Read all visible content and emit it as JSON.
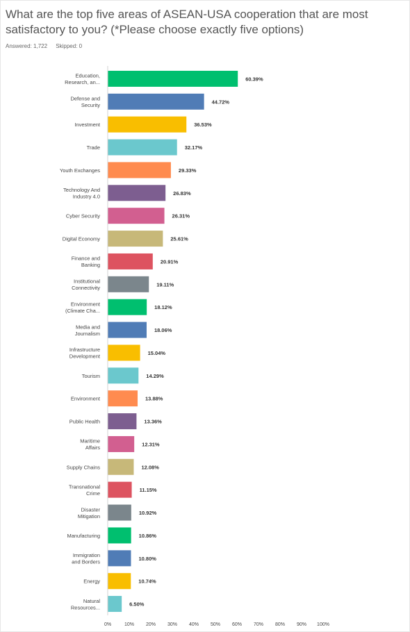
{
  "question": {
    "title": "What are the top five areas of ASEAN-USA cooperation that are most satisfactory to you? (*Please choose exactly five options)",
    "answered_label": "Answered: 1,722",
    "skipped_label": "Skipped: 0"
  },
  "chart_data": {
    "type": "bar",
    "orientation": "horizontal",
    "categories": [
      [
        "Education,",
        "Research, an..."
      ],
      [
        "Defense and",
        "Security"
      ],
      [
        "Investment"
      ],
      [
        "Trade"
      ],
      [
        "Youth Exchanges"
      ],
      [
        "Technology And",
        "Industry 4.0"
      ],
      [
        "Cyber Security"
      ],
      [
        "Digital Economy"
      ],
      [
        "Finance and",
        "Banking"
      ],
      [
        "Institutional",
        "Connectivity"
      ],
      [
        "Environment",
        "(Climate Cha..."
      ],
      [
        "Media and",
        "Journalism"
      ],
      [
        "Infrastructure",
        "Development"
      ],
      [
        "Tourism"
      ],
      [
        "Environment"
      ],
      [
        "Public Health"
      ],
      [
        "Maritime",
        "Affairs"
      ],
      [
        "Supply Chains"
      ],
      [
        "Transnational",
        "Crime"
      ],
      [
        "Disaster",
        "Mitigation"
      ],
      [
        "Manufacturing"
      ],
      [
        "Immigration",
        "and Borders"
      ],
      [
        "Energy"
      ],
      [
        "Natural",
        "Resources..."
      ]
    ],
    "values": [
      60.39,
      44.72,
      36.53,
      32.17,
      29.33,
      26.83,
      26.31,
      25.61,
      20.91,
      19.11,
      18.12,
      18.06,
      15.04,
      14.29,
      13.88,
      13.36,
      12.31,
      12.08,
      11.15,
      10.92,
      10.86,
      10.8,
      10.74,
      6.5
    ],
    "value_labels": [
      "60.39%",
      "44.72%",
      "36.53%",
      "32.17%",
      "29.33%",
      "26.83%",
      "26.31%",
      "25.61%",
      "20.91%",
      "19.11%",
      "18.12%",
      "18.06%",
      "15.04%",
      "14.29%",
      "13.88%",
      "13.36%",
      "12.31%",
      "12.08%",
      "11.15%",
      "10.92%",
      "10.86%",
      "10.80%",
      "10.74%",
      "6.50%"
    ],
    "xlim": [
      0,
      100
    ],
    "x_ticks": [
      "0%",
      "10%",
      "20%",
      "30%",
      "40%",
      "50%",
      "60%",
      "70%",
      "80%",
      "90%",
      "100%"
    ],
    "grid": false,
    "palette": [
      "#00bf6f",
      "#507cb6",
      "#f9be00",
      "#6bc8cd",
      "#ff8b4f",
      "#7d5e90",
      "#d25f90",
      "#c7b879",
      "#dd5360",
      "#7b868c"
    ]
  }
}
